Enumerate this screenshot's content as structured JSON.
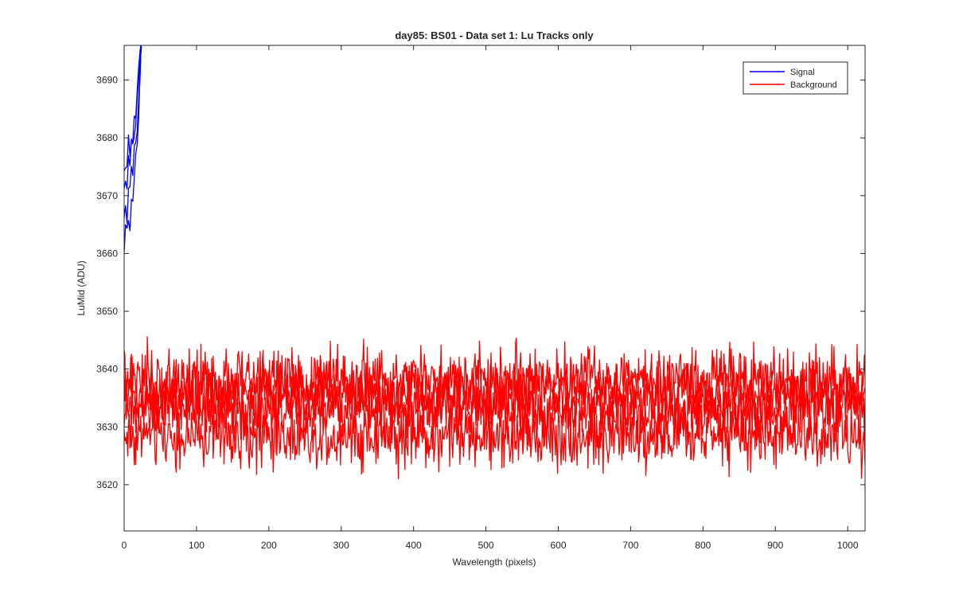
{
  "chart_data": {
    "type": "line",
    "title": "day85: BS01 - Data set 1: Lu Tracks only",
    "xlabel": "Wavelength (pixels)",
    "ylabel": "LuMid (ADU)",
    "xlim": [
      0,
      1024
    ],
    "ylim": [
      3612,
      3696
    ],
    "xticks": [
      0,
      100,
      200,
      300,
      400,
      500,
      600,
      700,
      800,
      900,
      1000
    ],
    "yticks": [
      3620,
      3630,
      3640,
      3650,
      3660,
      3670,
      3680,
      3690
    ],
    "grid": false,
    "legend_position": "top-right",
    "legend": [
      "Signal",
      "Background"
    ],
    "series": [
      {
        "name": "Signal",
        "color": "#0000ff",
        "note_values": "several overlapping traces rising steeply near the left edge, leaving the axes above ~3696 by x≈25",
        "traces": [
          {
            "x": [
              0,
              2,
              4,
              6,
              8,
              10,
              12,
              14,
              16,
              18,
              20,
              22,
              24
            ],
            "y": [
              3660,
              3664,
              3663,
              3666,
              3665,
              3669,
              3670,
              3673,
              3676,
              3680,
              3684,
              3690,
              3697
            ]
          },
          {
            "x": [
              0,
              2,
              4,
              6,
              8,
              10,
              12,
              14,
              16,
              18,
              20,
              22,
              24
            ],
            "y": [
              3666,
              3668,
              3667,
              3671,
              3670,
              3674,
              3673,
              3677,
              3679,
              3683,
              3687,
              3692,
              3697
            ]
          },
          {
            "x": [
              0,
              2,
              4,
              6,
              8,
              10,
              12,
              14,
              16,
              18,
              20,
              22,
              24
            ],
            "y": [
              3671,
              3673,
              3672,
              3676,
              3675,
              3678,
              3677,
              3681,
              3683,
              3686,
              3690,
              3694,
              3697
            ]
          },
          {
            "x": [
              0,
              2,
              4,
              6,
              8,
              10,
              12,
              14,
              16,
              18,
              20,
              22,
              24
            ],
            "y": [
              3674,
              3676,
              3675,
              3679,
              3678,
              3681,
              3680,
              3683,
              3685,
              3688,
              3692,
              3695,
              3697
            ]
          }
        ]
      },
      {
        "name": "Background",
        "color": "#ff0000",
        "note_values": "noisy traces spanning the full x range, centred near 3628, 3633, 3635 and 3638 ADU with ±3 ADU fluctuations",
        "traces": [
          {
            "center": 3628.5,
            "amplitude": 2.8
          },
          {
            "center": 3633.0,
            "amplitude": 2.6
          },
          {
            "center": 3635.5,
            "amplitude": 2.6
          },
          {
            "center": 3638.0,
            "amplitude": 2.8
          }
        ]
      }
    ]
  }
}
